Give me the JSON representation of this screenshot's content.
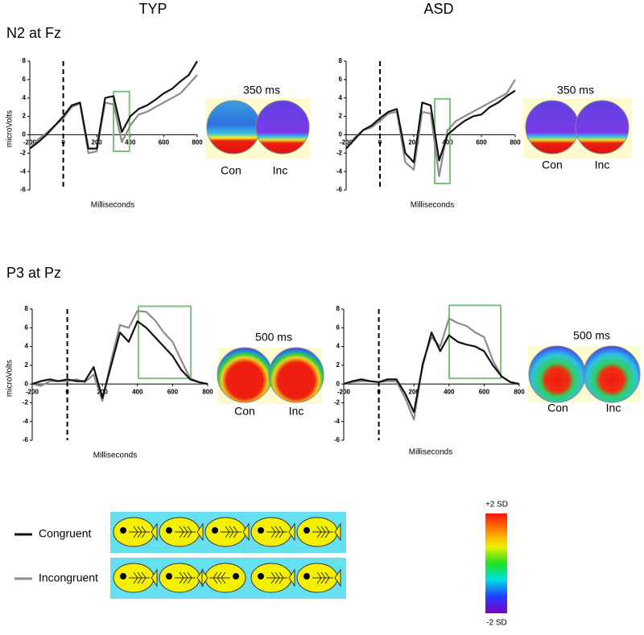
{
  "columns": [
    "TYP",
    "ASD"
  ],
  "rows": [
    "N2 at Fz",
    "P3 at Pz"
  ],
  "legend": [
    {
      "name": "Congruent",
      "color": "#111111"
    },
    {
      "name": "Incongruent",
      "color": "#8c8c8c"
    }
  ],
  "colorbar": {
    "top": "+2 SD",
    "bottom": "-2 SD"
  },
  "chart_data": [
    {
      "type": "line",
      "xlabel": "Milliseconds",
      "ylabel": "microVolts",
      "x": [
        -200,
        -150,
        -100,
        -50,
        0,
        50,
        100,
        150,
        200,
        250,
        300,
        350,
        400,
        450,
        500,
        550,
        600,
        650,
        700,
        750,
        800
      ],
      "series": [
        {
          "values": [
            -1.5,
            -0.8,
            0,
            1,
            2,
            3.2,
            3.5,
            -1.5,
            -1.5,
            4,
            4.2,
            0.3,
            2,
            2.8,
            3.2,
            3.8,
            4.5,
            5,
            5.8,
            6.5,
            8
          ]
        },
        {
          "values": [
            -1.5,
            -0.5,
            0.2,
            1,
            1.8,
            3,
            3.4,
            -2,
            -1.8,
            3.5,
            3.3,
            -0.8,
            1,
            2.2,
            2.5,
            3,
            3.5,
            4,
            4.5,
            5.5,
            6.5
          ]
        }
      ],
      "xlim": [
        -200,
        800
      ],
      "ylim": [
        -6,
        8
      ],
      "xticks": [
        -200,
        0,
        200,
        400,
        600,
        800
      ],
      "yticks": [
        -6,
        -4,
        -2,
        0,
        2,
        4,
        6,
        8
      ],
      "onset": 0,
      "highlight": {
        "x": [
          300,
          395
        ],
        "y": [
          -1.8,
          4.7
        ]
      },
      "topomap": {
        "time": "350 ms",
        "labels": [
          "Con",
          "Inc"
        ]
      }
    },
    {
      "type": "line",
      "xlabel": "Milliseconds",
      "x": [
        -200,
        -150,
        -100,
        -50,
        0,
        50,
        100,
        150,
        200,
        250,
        300,
        350,
        400,
        450,
        500,
        550,
        600,
        650,
        700,
        750,
        800
      ],
      "series": [
        {
          "values": [
            -1.5,
            -0.5,
            0.5,
            1,
            1.8,
            2.5,
            2.8,
            -2,
            -3,
            3.5,
            3.2,
            -2.8,
            0,
            0.8,
            1.5,
            2,
            2.2,
            3,
            3.5,
            4.2,
            4.8
          ]
        },
        {
          "values": [
            -1.5,
            -0.3,
            0.5,
            0.8,
            1.5,
            2.3,
            2.5,
            -3,
            -3.8,
            2.5,
            2.3,
            -4.5,
            0.5,
            1.5,
            2,
            2.5,
            3,
            3.5,
            4,
            4.5,
            6
          ]
        }
      ],
      "xlim": [
        -200,
        800
      ],
      "ylim": [
        -6,
        8
      ],
      "xticks": [
        -200,
        0,
        200,
        400,
        600,
        800
      ],
      "yticks": [
        -6,
        -4,
        -2,
        0,
        2,
        4,
        6,
        8
      ],
      "onset": 0,
      "highlight": {
        "x": [
          324,
          414
        ],
        "y": [
          -5.3,
          3.9
        ]
      },
      "topomap": {
        "time": "350 ms",
        "labels": [
          "Con",
          "Inc"
        ]
      }
    },
    {
      "type": "line",
      "xlabel": "Milliseconds",
      "ylabel": "microVolts",
      "x": [
        -200,
        -150,
        -100,
        -50,
        0,
        50,
        100,
        150,
        200,
        250,
        300,
        350,
        400,
        450,
        500,
        550,
        600,
        650,
        700,
        750,
        800
      ],
      "series": [
        {
          "values": [
            0,
            0.3,
            0.5,
            0.3,
            0.5,
            0.3,
            0.3,
            1.8,
            -1.5,
            2,
            5.5,
            4.5,
            6.7,
            6,
            5,
            4,
            3,
            1.5,
            0.5,
            0.2,
            0
          ]
        },
        {
          "values": [
            0,
            -0.2,
            0.3,
            0.3,
            0.3,
            0.5,
            0.2,
            1,
            -1.8,
            2.5,
            6.3,
            6,
            7.8,
            7.7,
            6.8,
            5.5,
            4.5,
            2.5,
            0.6,
            0.2,
            0
          ]
        }
      ],
      "xlim": [
        -200,
        800
      ],
      "ylim": [
        -6,
        8
      ],
      "xticks": [
        -200,
        0,
        200,
        400,
        600,
        800
      ],
      "yticks": [
        -6,
        -4,
        -2,
        0,
        2,
        4,
        6,
        8
      ],
      "onset": 0,
      "highlight": {
        "x": [
          405,
          704
        ],
        "y": [
          0.6,
          8.3
        ]
      },
      "topomap": {
        "time": "500 ms",
        "labels": [
          "Con",
          "Inc"
        ]
      }
    },
    {
      "type": "line",
      "xlabel": "Milliseconds",
      "x": [
        -200,
        -150,
        -100,
        -50,
        0,
        50,
        100,
        150,
        200,
        250,
        300,
        350,
        400,
        450,
        500,
        550,
        600,
        650,
        700,
        750,
        800
      ],
      "series": [
        {
          "values": [
            0,
            0.3,
            0.5,
            0.3,
            0.2,
            0.5,
            0.5,
            -1,
            -3,
            2,
            5.5,
            3.5,
            5.2,
            4.5,
            4.2,
            4,
            3.5,
            2,
            0.8,
            0.2,
            0
          ]
        },
        {
          "values": [
            0,
            0.2,
            0.3,
            0.3,
            0.2,
            0.3,
            0.3,
            -1.5,
            -3.8,
            2.3,
            5,
            4,
            7,
            6.5,
            6.2,
            5.5,
            5,
            2.5,
            0.8,
            0.2,
            0
          ]
        }
      ],
      "xlim": [
        -200,
        800
      ],
      "ylim": [
        -6,
        8
      ],
      "xticks": [
        -200,
        0,
        200,
        400,
        600,
        800
      ],
      "yticks": [
        -6,
        -4,
        -2,
        0,
        2,
        4,
        6,
        8
      ],
      "onset": 0,
      "highlight": {
        "x": [
          401,
          695
        ],
        "y": [
          0.6,
          8.4
        ]
      },
      "topomap": {
        "time": "500 ms",
        "labels": [
          "Con",
          "Inc"
        ]
      }
    }
  ]
}
